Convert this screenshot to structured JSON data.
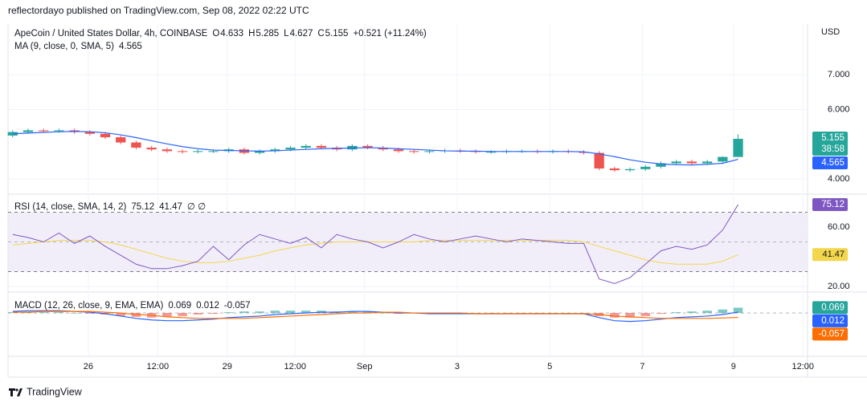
{
  "header": {
    "published": "reflectordayo published on TradingView.com, Sep 08, 2022 02:22 UTC"
  },
  "footer": {
    "brand": "TradingView"
  },
  "chart_data": [
    {
      "type": "candlestick",
      "title": "ApeCoin / United States Dollar, 4h, COINBASE",
      "ohlc_prefixes": [
        "O",
        "H",
        "L",
        "C"
      ],
      "change": "+0.521 (+11.24%)",
      "currency": "USD",
      "countdown": "38:58",
      "up_color": "#26a69a",
      "down_color": "#ef5350",
      "open": [
        5.25,
        5.35,
        5.4,
        5.38,
        5.4,
        5.35,
        5.3,
        5.2,
        5.05,
        4.9,
        4.85,
        4.8,
        4.78,
        4.8,
        4.8,
        4.85,
        4.75,
        4.8,
        4.85,
        4.9,
        4.95,
        4.9,
        4.85,
        4.95,
        4.9,
        4.85,
        4.8,
        4.78,
        4.8,
        4.82,
        4.8,
        4.78,
        4.78,
        4.8,
        4.8,
        4.78,
        4.8,
        4.78,
        4.75,
        4.3,
        4.25,
        4.28,
        4.35,
        4.45,
        4.5,
        4.45,
        4.5,
        4.633
      ],
      "high": [
        5.4,
        5.45,
        5.45,
        5.45,
        5.45,
        5.4,
        5.35,
        5.25,
        5.1,
        4.95,
        4.9,
        4.85,
        4.85,
        4.85,
        4.9,
        4.9,
        4.85,
        4.9,
        4.95,
        5.0,
        5.0,
        4.95,
        5.0,
        5.0,
        4.95,
        4.9,
        4.85,
        4.85,
        4.87,
        4.87,
        4.85,
        4.83,
        4.85,
        4.85,
        4.85,
        4.85,
        4.85,
        4.83,
        4.8,
        4.35,
        4.33,
        4.4,
        4.5,
        4.55,
        4.55,
        4.55,
        4.65,
        5.285
      ],
      "low": [
        5.2,
        5.3,
        5.33,
        5.33,
        5.3,
        5.25,
        5.15,
        5.0,
        4.85,
        4.8,
        4.75,
        4.73,
        4.73,
        4.75,
        4.75,
        4.7,
        4.7,
        4.75,
        4.8,
        4.85,
        4.85,
        4.8,
        4.8,
        4.85,
        4.8,
        4.75,
        4.73,
        4.73,
        4.75,
        4.75,
        4.73,
        4.73,
        4.73,
        4.75,
        4.73,
        4.73,
        4.73,
        4.7,
        4.25,
        4.2,
        4.2,
        4.23,
        4.3,
        4.4,
        4.4,
        4.4,
        4.45,
        4.627
      ],
      "close": [
        5.35,
        5.4,
        5.38,
        5.4,
        5.35,
        5.3,
        5.2,
        5.05,
        4.9,
        4.85,
        4.8,
        4.78,
        4.8,
        4.8,
        4.85,
        4.75,
        4.8,
        4.85,
        4.9,
        4.95,
        4.9,
        4.85,
        4.95,
        4.9,
        4.85,
        4.8,
        4.78,
        4.8,
        4.82,
        4.8,
        4.78,
        4.78,
        4.8,
        4.8,
        4.78,
        4.8,
        4.78,
        4.75,
        4.3,
        4.25,
        4.28,
        4.35,
        4.45,
        4.5,
        4.45,
        4.5,
        4.633,
        5.155
      ],
      "ma": {
        "name": "MA (9, close, 0, SMA, 5)",
        "color": "#2962ff",
        "values": [
          5.3,
          5.32,
          5.34,
          5.36,
          5.37,
          5.36,
          5.33,
          5.27,
          5.19,
          5.1,
          5.01,
          4.93,
          4.87,
          4.83,
          4.82,
          4.81,
          4.8,
          4.81,
          4.83,
          4.85,
          4.87,
          4.88,
          4.89,
          4.9,
          4.89,
          4.87,
          4.85,
          4.83,
          4.81,
          4.8,
          4.8,
          4.79,
          4.79,
          4.79,
          4.79,
          4.79,
          4.79,
          4.78,
          4.72,
          4.64,
          4.55,
          4.48,
          4.43,
          4.41,
          4.4,
          4.42,
          4.45,
          4.565
        ]
      },
      "xlim": [
        -0.3,
        51.5
      ],
      "xticks": [
        {
          "value": 4.9,
          "label": "26"
        },
        {
          "value": 9.4,
          "label": "12:00"
        },
        {
          "value": 13.9,
          "label": "29"
        },
        {
          "value": 18.3,
          "label": "12:00"
        },
        {
          "value": 22.8,
          "label": "Sep"
        },
        {
          "value": 28.8,
          "label": "3"
        },
        {
          "value": 34.8,
          "label": "5"
        },
        {
          "value": 40.8,
          "label": "7"
        },
        {
          "value": 46.7,
          "label": "9"
        },
        {
          "value": 51.2,
          "label": "12:00"
        }
      ],
      "ylim": [
        3.605,
        8.465
      ],
      "yticks": [
        {
          "value": 4,
          "label": "4.000"
        },
        {
          "value": 6,
          "label": "6.000"
        },
        {
          "value": 7,
          "label": "7.000"
        }
      ],
      "grid": true
    },
    {
      "type": "line",
      "title": "RSI (14, close, SMA, 14, 2)",
      "extra": "∅ ∅",
      "band": [
        30,
        70
      ],
      "midline": 50,
      "band_color": "#ede7f6",
      "series": [
        {
          "color": "#7e57c2",
          "values": [
            55,
            53,
            50,
            56,
            49,
            54,
            47,
            41,
            35,
            32,
            32,
            34,
            37,
            47,
            38,
            48,
            55,
            52,
            49,
            53,
            46,
            55,
            52,
            50,
            46,
            50,
            55,
            52,
            50,
            52,
            54,
            52,
            50,
            52,
            51,
            50,
            49,
            49,
            25,
            22,
            26,
            35,
            44,
            47,
            45,
            48,
            58,
            75.12
          ]
        },
        {
          "color": "#f2d64b",
          "values": [
            48,
            49,
            50,
            51,
            51,
            51,
            50,
            48,
            45,
            42,
            39,
            37,
            36,
            36,
            37,
            39,
            41,
            44,
            46,
            48,
            49,
            50,
            50,
            50,
            50,
            50,
            50,
            51,
            51,
            51,
            51,
            51,
            51,
            51,
            51,
            51,
            51,
            50,
            47,
            44,
            41,
            38,
            36,
            35,
            35,
            35,
            37,
            41.47
          ]
        }
      ],
      "ylim": [
        17.3,
        81.1
      ],
      "yticks": [
        {
          "value": 20,
          "label": "20.00"
        },
        {
          "value": 60,
          "label": "60.00"
        }
      ],
      "grid": true
    },
    {
      "type": "macd",
      "title": "MACD (12, 26, close, 9, EMA, EMA)",
      "series": [
        {
          "style": "histogram",
          "color": "#26a69a",
          "negative_color": "#ef5350",
          "values": [
            0.01,
            0.02,
            0.01,
            0.01,
            0.0,
            -0.01,
            -0.02,
            -0.04,
            -0.05,
            -0.06,
            -0.05,
            -0.04,
            -0.02,
            -0.01,
            0.01,
            0.02,
            0.02,
            0.03,
            0.03,
            0.03,
            0.03,
            0.02,
            0.02,
            0.02,
            0.0,
            -0.01,
            0.0,
            -0.01,
            -0.01,
            -0.01,
            0.0,
            0.0,
            0.0,
            0.0,
            0.0,
            0.0,
            0.0,
            0.0,
            -0.04,
            -0.06,
            -0.06,
            -0.04,
            -0.01,
            0.01,
            0.02,
            0.03,
            0.045,
            0.069
          ]
        },
        {
          "color": "#2962ff",
          "values": [
            0.02,
            0.03,
            0.03,
            0.03,
            0.02,
            0.01,
            -0.01,
            -0.04,
            -0.07,
            -0.09,
            -0.1,
            -0.1,
            -0.09,
            -0.08,
            -0.06,
            -0.05,
            -0.04,
            -0.02,
            -0.01,
            0.0,
            0.01,
            0.01,
            0.02,
            0.02,
            0.01,
            0.0,
            0.0,
            -0.01,
            -0.01,
            -0.01,
            -0.01,
            -0.01,
            -0.01,
            -0.01,
            -0.01,
            -0.01,
            -0.01,
            -0.01,
            -0.06,
            -0.1,
            -0.11,
            -0.1,
            -0.08,
            -0.06,
            -0.05,
            -0.04,
            -0.02,
            0.012
          ]
        },
        {
          "color": "#ff6d00",
          "values": [
            0.01,
            0.01,
            0.02,
            0.02,
            0.02,
            0.02,
            0.01,
            0.0,
            -0.02,
            -0.03,
            -0.05,
            -0.06,
            -0.07,
            -0.07,
            -0.07,
            -0.07,
            -0.06,
            -0.05,
            -0.04,
            -0.03,
            -0.02,
            -0.01,
            0.0,
            0.0,
            0.01,
            0.01,
            0.0,
            0.0,
            0.0,
            0.0,
            -0.01,
            -0.01,
            -0.01,
            -0.01,
            -0.01,
            -0.01,
            -0.01,
            -0.01,
            -0.02,
            -0.04,
            -0.05,
            -0.06,
            -0.07,
            -0.07,
            -0.07,
            -0.07,
            -0.065,
            -0.057
          ]
        }
      ],
      "zero": 0,
      "ylim": [
        -0.55,
        0.25
      ]
    }
  ]
}
